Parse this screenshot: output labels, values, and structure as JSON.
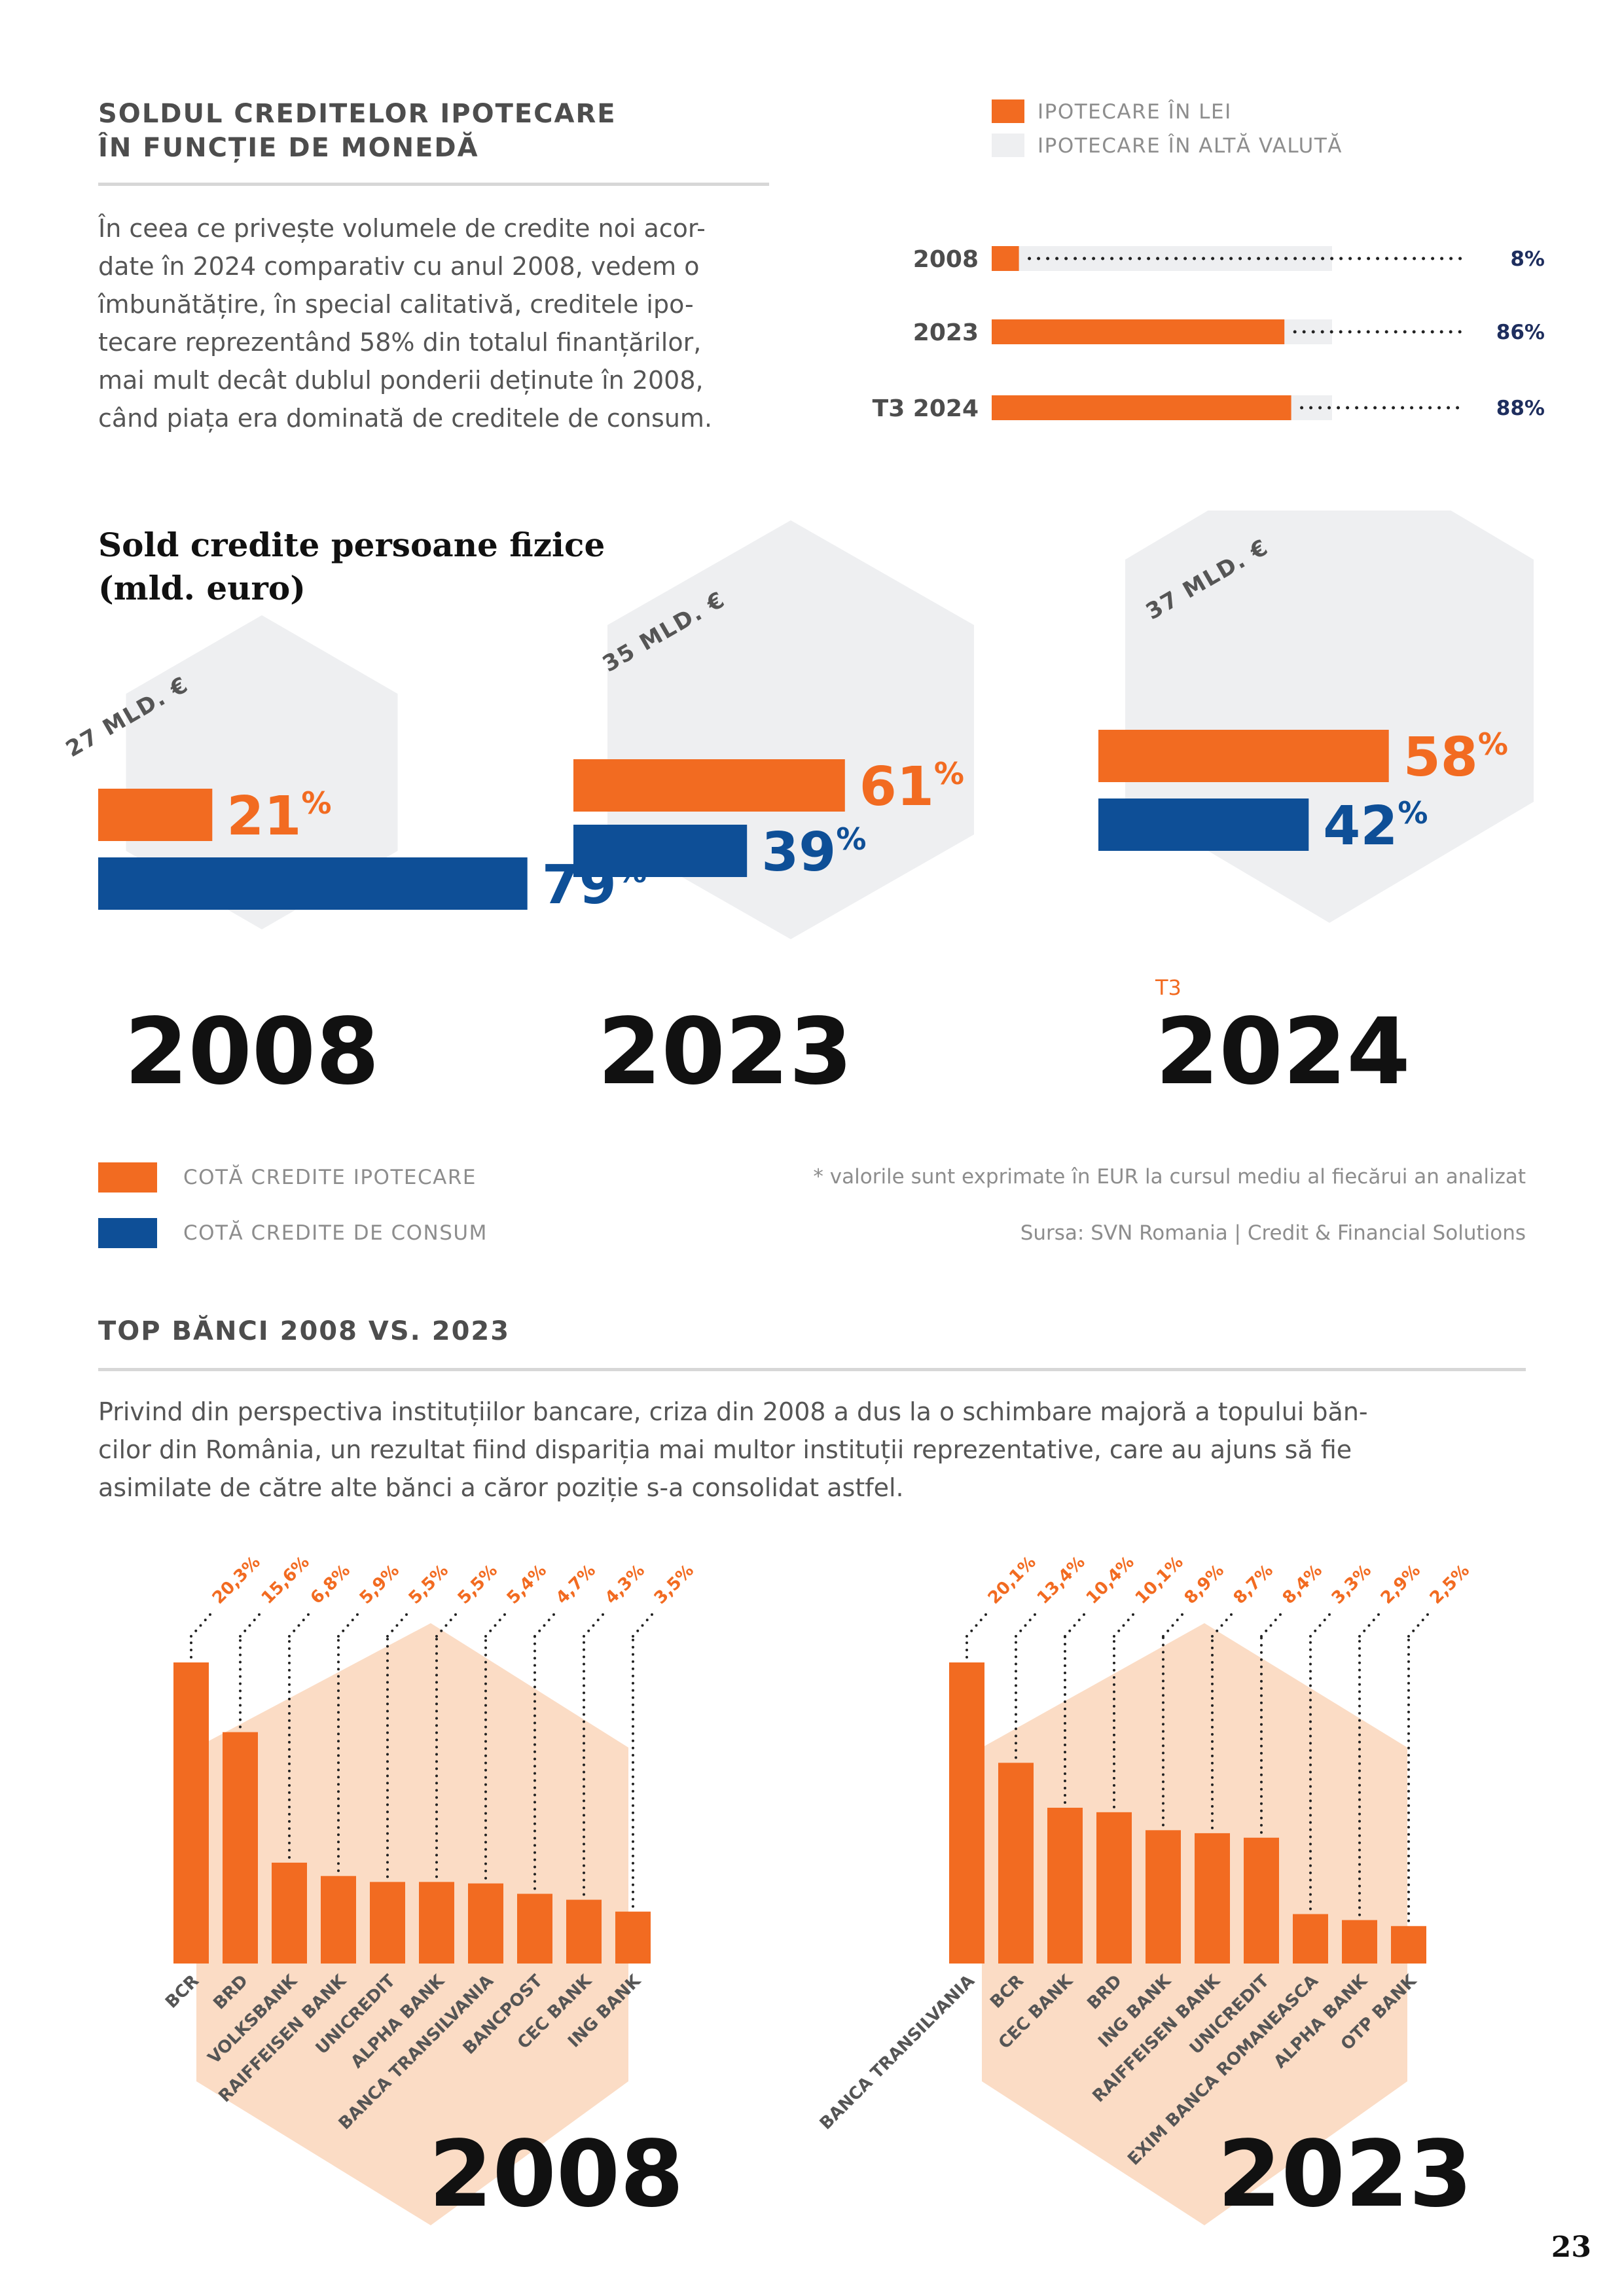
{
  "colors": {
    "orange": "#f26b21",
    "blue": "#0e4f97",
    "gray_fill": "#eeeff1",
    "peach": "#fbdcc5",
    "navy": "#1e2e5e"
  },
  "mortgage_currency": {
    "title_line1": "SOLDUL CREDITELOR IPOTECARE",
    "title_line2": "ÎN FUNCȚIE DE MONEDĂ",
    "paragraph": [
      "În ceea ce privește volumele de credite noi acor-",
      "date în 2024 comparativ cu anul 2008, vedem o",
      "îmbunătățire, în special calitativă, creditele ipo-",
      "tecare reprezentând 58% din totalul finanțărilor,",
      "mai mult decât dublul ponderii deținute în 2008,",
      "când piața era dominată de creditele de consum."
    ],
    "legend_lei": "IPOTECARE ÎN LEI",
    "legend_other": "IPOTECARE ÎN ALTĂ VALUTĂ"
  },
  "personal_credit": {
    "title_line1": "Sold credite persoane fizice",
    "title_line2": "(mld. euro)",
    "legend_mortgage": "COTĂ CREDITE IPOTECARE",
    "legend_consumer": "COTĂ CREDITE DE CONSUM",
    "note": "* valorile sunt exprimate în EUR la cursul mediu al fiecărui an analizat",
    "source": "Sursa: SVN Romania | Credit & Financial Solutions"
  },
  "top_banks": {
    "title": "TOP BĂNCI 2008 VS. 2023",
    "paragraph": [
      "Privind din perspectiva instituțiilor bancare, criza din 2008 a dus la o schimbare majoră a topului băn-",
      "cilor din România, un rezultat fiind dispariția mai multor instituții reprezentative, care au ajuns să fie",
      "asimilate de către alte bănci a căror poziție s-a consolidat astfel."
    ]
  },
  "page_number": "23",
  "chart_data": [
    {
      "type": "bar",
      "title": "Soldul creditelor ipotecare în funcție de monedă",
      "orientation": "horizontal",
      "categories": [
        "2008",
        "2023",
        "T3 2024"
      ],
      "series": [
        {
          "name": "IPOTECARE ÎN LEI",
          "values": [
            8,
            86,
            88
          ]
        },
        {
          "name": "IPOTECARE ÎN ALTĂ VALUTĂ",
          "values": [
            92,
            14,
            12
          ]
        }
      ],
      "value_labels": [
        "8%",
        "86%",
        "88%"
      ],
      "xlim": [
        0,
        100
      ]
    },
    {
      "type": "bar",
      "title": "Sold credite persoane fizice (mld. euro)",
      "orientation": "horizontal",
      "categories": [
        "2008",
        "2023",
        "2024"
      ],
      "prefixes": [
        "",
        "",
        "T3"
      ],
      "totals": [
        "27 MLD. €",
        "35 MLD. €",
        "37 MLD. €"
      ],
      "series": [
        {
          "name": "COTĂ CREDITE IPOTECARE",
          "values": [
            21,
            61,
            58
          ],
          "labels": [
            "21",
            "61",
            "58"
          ]
        },
        {
          "name": "COTĂ CREDITE DE CONSUM",
          "values": [
            79,
            39,
            42
          ],
          "labels": [
            "79",
            "39",
            "42"
          ]
        }
      ],
      "percent_sign": "%",
      "xlim": [
        0,
        100
      ]
    },
    {
      "type": "bar",
      "title": "2008",
      "categories": [
        "BCR",
        "BRD",
        "VOLKSBANK",
        "RAIFFEISEN BANK",
        "UNICREDIT",
        "ALPHA BANK",
        "BANCA TRANSILVANIA",
        "BANCPOST",
        "CEC BANK",
        "ING BANK"
      ],
      "values": [
        20.3,
        15.6,
        6.8,
        5.9,
        5.5,
        5.5,
        5.4,
        4.7,
        4.3,
        3.5
      ],
      "value_labels": [
        "20,3%",
        "15,6%",
        "6,8%",
        "5,9%",
        "5,5%",
        "5,5%",
        "5,4%",
        "4,7%",
        "4,3%",
        "3,5%"
      ],
      "ylim": [
        0,
        20.3
      ]
    },
    {
      "type": "bar",
      "title": "2023",
      "categories": [
        "BANCA TRANSILVANIA",
        "BCR",
        "CEC BANK",
        "BRD",
        "ING BANK",
        "RAIFFEISEN BANK",
        "UNICREDIT",
        "EXIM BANCA ROMANEASCA",
        "ALPHA BANK",
        "OTP BANK"
      ],
      "values": [
        20.1,
        13.4,
        10.4,
        10.1,
        8.9,
        8.7,
        8.4,
        3.3,
        2.9,
        2.5
      ],
      "value_labels": [
        "20,1%",
        "13,4%",
        "10,4%",
        "10,1%",
        "8,9%",
        "8,7%",
        "8,4%",
        "3,3%",
        "2,9%",
        "2,5%"
      ],
      "ylim": [
        0,
        20.1
      ]
    }
  ]
}
